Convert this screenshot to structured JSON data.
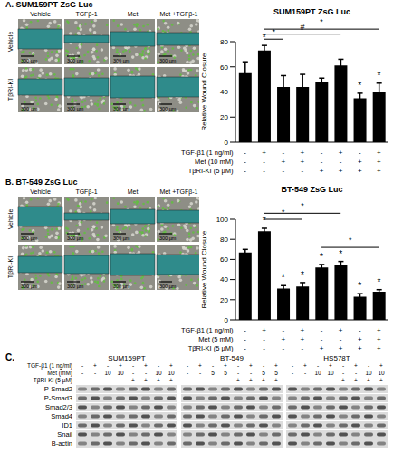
{
  "chart_data": [
    {
      "type": "bar",
      "panel": "A.",
      "title": "SUM159PT ZsG Luc",
      "y_label": "Relative Wound Closure",
      "values": [
        55,
        73,
        44,
        44,
        48,
        61,
        35,
        40
      ],
      "errors": [
        9,
        4,
        9,
        10,
        3,
        5,
        4,
        7
      ],
      "color": "#000000",
      "ylim": [
        0,
        80
      ],
      "yticks": [
        0,
        20,
        40,
        60,
        80
      ],
      "conditions": [
        {
          "label": "TGF-β1 (1 ng/ml)",
          "values": [
            "-",
            "+",
            "-",
            "+",
            "-",
            "+",
            "-",
            "+"
          ]
        },
        {
          "label": "Met (10 mM)",
          "values": [
            "-",
            "-",
            "+",
            "+",
            "-",
            "-",
            "+",
            "+"
          ]
        },
        {
          "label": "TβRI-KI (5 µM)",
          "values": [
            "-",
            "-",
            "-",
            "-",
            "+",
            "+",
            "+",
            "+"
          ]
        }
      ],
      "bar_marks": [
        null,
        "*",
        null,
        null,
        null,
        null,
        "*",
        "*"
      ],
      "brackets": [
        {
          "from": 1,
          "to": 2,
          "y": 82,
          "label": "*"
        },
        {
          "from": 1,
          "to": 5,
          "y": 86,
          "label": "#"
        },
        {
          "from": 1,
          "to": 7,
          "y": 90,
          "label": "*"
        }
      ],
      "images": {
        "columns": [
          "Vehicle",
          "TGFβ-1",
          "Met",
          "Met +TGFβ-1"
        ],
        "rows": [
          "Vehicle",
          "TβRI-KI"
        ],
        "scale_bar": "300 µm"
      }
    },
    {
      "type": "bar",
      "panel": "B.",
      "title": "BT-549 ZsG Luc",
      "y_label": "Relative Wound Closure",
      "values": [
        67,
        88,
        31,
        33,
        52,
        54,
        23,
        28
      ],
      "errors": [
        3,
        3,
        3,
        4,
        3,
        4,
        3,
        2
      ],
      "color": "#000000",
      "ylim": [
        0,
        100
      ],
      "yticks": [
        0,
        20,
        40,
        60,
        80,
        100
      ],
      "conditions": [
        {
          "label": "TGF-β1 (1 ng/ml)",
          "values": [
            "-",
            "+",
            "-",
            "+",
            "-",
            "+",
            "-",
            "+"
          ]
        },
        {
          "label": "Met (5 mM)",
          "values": [
            "-",
            "-",
            "+",
            "+",
            "-",
            "-",
            "+",
            "+"
          ]
        },
        {
          "label": "TβRI-KI (5 µM)",
          "values": [
            "-",
            "-",
            "-",
            "-",
            "+",
            "+",
            "+",
            "+"
          ]
        }
      ],
      "bar_marks": [
        null,
        "*",
        "*",
        "*",
        "*",
        "*",
        "*",
        "*"
      ],
      "brackets": [
        {
          "from": 4,
          "to": 7,
          "y": 72,
          "label": "*"
        },
        {
          "from": 1,
          "to": 3,
          "y": 100,
          "label": "*"
        },
        {
          "from": 1,
          "to": 5,
          "y": 106,
          "label": "*"
        }
      ],
      "images": {
        "columns": [
          "Vehicle",
          "TGFβ-1",
          "Met",
          "Met +TGFβ-1"
        ],
        "rows": [
          "Vehicle",
          "TβRI-KI"
        ],
        "scale_bar": "300 µm"
      }
    }
  ],
  "blot": {
    "panel": "C.",
    "condition_labels": [
      "TGF-β1 (1 ng/ml)",
      "Met (mM)",
      "TβRI-KI (5 µM)"
    ],
    "cell_lines": [
      {
        "name": "SUM159PT",
        "conditions": [
          [
            "-",
            "+",
            "-",
            "+",
            "-",
            "+",
            "-",
            "+"
          ],
          [
            "-",
            "-",
            "10",
            "10",
            "-",
            "-",
            "10",
            "10"
          ],
          [
            "-",
            "-",
            "-",
            "-",
            "+",
            "+",
            "+",
            "+"
          ]
        ]
      },
      {
        "name": "BT-549",
        "conditions": [
          [
            "-",
            "+",
            "-",
            "+",
            "-",
            "+",
            "-",
            "+"
          ],
          [
            "-",
            "-",
            "5",
            "5",
            "-",
            "-",
            "5",
            "5"
          ],
          [
            "-",
            "-",
            "-",
            "-",
            "+",
            "+",
            "+",
            "+"
          ]
        ]
      },
      {
        "name": "HS578T",
        "conditions": [
          [
            "-",
            "+",
            "-",
            "+",
            "-",
            "+",
            "-",
            "+"
          ],
          [
            "-",
            "-",
            "10",
            "10",
            "-",
            "-",
            "10",
            "10"
          ],
          [
            "-",
            "-",
            "-",
            "-",
            "+",
            "+",
            "+",
            "+"
          ]
        ]
      }
    ],
    "rows": [
      "P-Smad2",
      "P-Smad3",
      "Smad2/3",
      "Smad4",
      "ID1",
      "Snail",
      "B-actin"
    ]
  }
}
